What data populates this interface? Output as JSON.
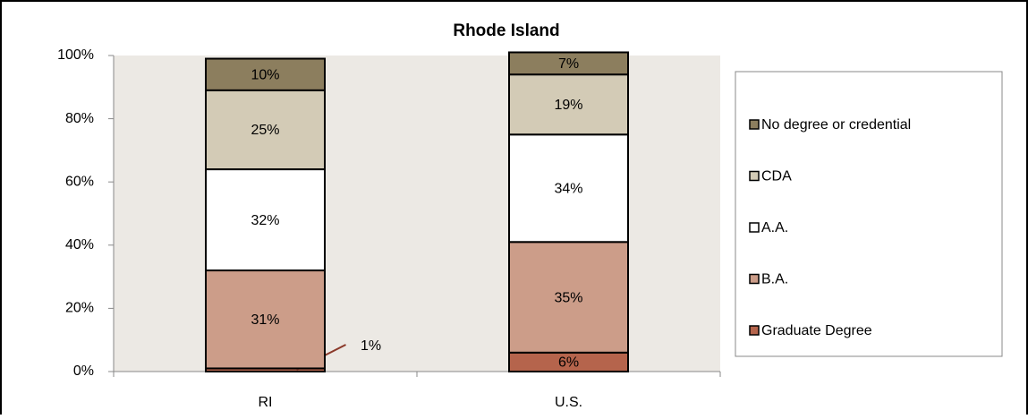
{
  "chart_data": {
    "type": "stacked_bar",
    "title": "Rhode Island",
    "categories": [
      "RI",
      "U.S."
    ],
    "series": [
      {
        "name": "Graduate Degree",
        "color": "#b5644c",
        "values": [
          1,
          6
        ],
        "value_labels": [
          "1%",
          "6%"
        ]
      },
      {
        "name": "B.A.",
        "color": "#cc9d89",
        "values": [
          31,
          35
        ],
        "value_labels": [
          "31%",
          "35%"
        ]
      },
      {
        "name": "A.A.",
        "color": "#ffffff",
        "values": [
          32,
          34
        ],
        "value_labels": [
          "32%",
          "34%"
        ]
      },
      {
        "name": "CDA",
        "color": "#d3cbb6",
        "values": [
          25,
          19
        ],
        "value_labels": [
          "25%",
          "19%"
        ]
      },
      {
        "name": "No degree or credential",
        "color": "#8c7e5e",
        "values": [
          10,
          7
        ],
        "value_labels": [
          "10%",
          "7%"
        ]
      }
    ],
    "ylim": [
      0,
      100
    ],
    "yticks": [
      {
        "value": 0,
        "label": "0%"
      },
      {
        "value": 20,
        "label": "20%"
      },
      {
        "value": 40,
        "label": "40%"
      },
      {
        "value": 60,
        "label": "60%"
      },
      {
        "value": 80,
        "label": "80%"
      },
      {
        "value": 100,
        "label": "100%"
      }
    ],
    "legend": "right"
  }
}
